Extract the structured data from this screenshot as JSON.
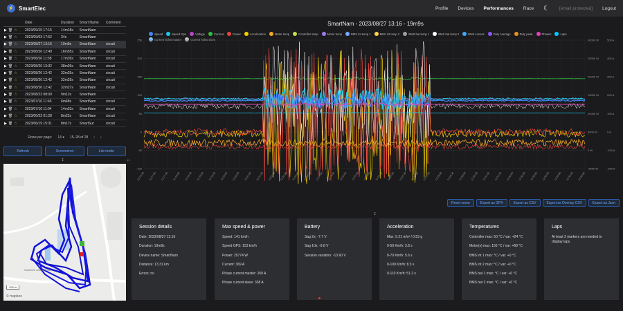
{
  "app": {
    "name": "SmartElec"
  },
  "nav": {
    "profile": "Profile",
    "devices": "Devices",
    "performances": "Performances",
    "race": "Race",
    "email": "[email protected]",
    "logout": "Logout"
  },
  "table": {
    "headers": {
      "date": "Date",
      "duration": "Duration",
      "name": "Smart Name",
      "comment": "Comment"
    },
    "rows": [
      {
        "date": "2023/09/15 17:15",
        "duration": "14m18s",
        "name": "SmartNam",
        "comment": ""
      },
      {
        "date": "2023/09/03 17:52",
        "duration": "34s",
        "name": "SmartNam",
        "comment": ""
      },
      {
        "date": "2023/08/27 13:16",
        "duration": "19m9s",
        "name": "SmartNam",
        "comment": "circuit"
      },
      {
        "date": "2023/08/26 12:49",
        "duration": "16m55s",
        "name": "SmartNam",
        "comment": "circuit"
      },
      {
        "date": "2023/08/26 11:58",
        "duration": "17m39s",
        "name": "SmartNam",
        "comment": "circuit"
      },
      {
        "date": "2023/08/26 13:32",
        "duration": "38m39s",
        "name": "SmartNam",
        "comment": "circuit"
      },
      {
        "date": "2023/08/26 12:42",
        "duration": "32m25s",
        "name": "SmartNam",
        "comment": "circuit"
      },
      {
        "date": "2023/08/26 12:42",
        "duration": "32m29s",
        "name": "SmartNam",
        "comment": "circuit"
      },
      {
        "date": "2023/08/26 12:42",
        "duration": "32m27s",
        "name": "SmartNam",
        "comment": "circuit"
      },
      {
        "date": "2023/08/23 08:09",
        "duration": "9m12s",
        "name": "SmartNam",
        "comment": ""
      },
      {
        "date": "2023/07/16 11:45",
        "duration": "6m48s",
        "name": "SmartNam",
        "comment": "circuit"
      },
      {
        "date": "2023/07/16 11:04",
        "duration": "14m33s",
        "name": "SmartNam",
        "comment": "circuit"
      },
      {
        "date": "2023/06/22 01:28",
        "duration": "8m22s",
        "name": "SmartNam",
        "comment": "circuit"
      },
      {
        "date": "2023/06/19 15:31",
        "duration": "8m17s",
        "name": "SmartSur",
        "comment": "circuit"
      }
    ],
    "pagination": {
      "rows_label": "Rows per page:",
      "rows_value": "14",
      "range": "15–28 of 28"
    }
  },
  "buttons": {
    "refresh": "Refresh",
    "screenshot": "Screenshot",
    "lite": "Lite mode"
  },
  "map": {
    "attribution": "© mapbox",
    "scale": "100 m",
    "road": "Southern Arena Circuit"
  },
  "chart_data": {
    "type": "line",
    "title": "SmartNam - 2023/08/27 13:16 - 19m9s",
    "legend": [
      "Speed",
      "Speed Gps",
      "Voltage",
      "Current",
      "Power",
      "Acceleration",
      "Motor temp",
      "Controller temp",
      "Motor temp",
      "BMS int temp 1",
      "BMS int temp 2",
      "BMS bat temp 1",
      "BMS bat temp 2",
      "BMS current",
      "Duty Average",
      "Duty peak",
      "Phases",
      "Laps",
      "Current hides master",
      "Current hides slave"
    ],
    "colors": [
      "#4285f4",
      "#1ec7e8",
      "#bb44cc",
      "#2fbf40",
      "#e8453c",
      "#f5d000",
      "#f5a623",
      "#c0e040",
      "#9e7cf0",
      "#7aa8ff",
      "#ffd24a",
      "#9e9e9e",
      "#ffffff",
      "#3fa8ff",
      "#8855ff",
      "#e89020",
      "#dd44bb",
      "#00ccff",
      "#88ccff",
      "#cccccc"
    ],
    "y_left": {
      "min": -100,
      "max": 250
    },
    "x_labels": [
      "13:16:30",
      "13:17:00",
      "13:17:30",
      "13:18:00",
      "13:18:30",
      "13:19:00",
      "13:19:30",
      "13:20:00",
      "13:20:30",
      "13:21:00",
      "13:21:30",
      "13:22:00",
      "13:22:30",
      "13:23:00",
      "13:23:30",
      "13:24:00",
      "13:24:30",
      "13:25:00",
      "13:25:30",
      "13:26:00",
      "13:26:30",
      "13:27:00",
      "13:27:30",
      "13:28:00",
      "13:28:30",
      "13:29:00",
      "13:29:30",
      "13:30:00",
      "13:30:30",
      "13:31:00",
      "13:31:30",
      "13:32:00",
      "13:32:30",
      "13:33:00",
      "13:33:30",
      "13:34:00",
      "13:34:30",
      "13:35:00"
    ],
    "y_left_ticks": [
      "250",
      "200",
      "150",
      "100",
      "50",
      "0",
      "-50",
      "-100"
    ],
    "y_right_ticks": [
      "30000 W",
      "25000 W",
      "20000 W",
      "15000 W",
      "10000 W",
      "5000 W",
      "0 W",
      "-5000 W"
    ],
    "y_right2_ticks": [
      "500 A",
      "400 A",
      "300 A",
      "200 A",
      "100 A",
      "0 A",
      "-100 A",
      "-200 A"
    ]
  },
  "actions": {
    "reset": "Reset zoom",
    "gpx": "Export as GPX",
    "csv": "Export as CSV",
    "overlay": "Export as Overlay CSV",
    "json": "Export as Json"
  },
  "cards": {
    "session": {
      "title": "Session details",
      "lines": [
        "Date: 2023/08/27 13:16",
        "Duration: 19m9s",
        "Device name: SmartNam",
        "Distance: 13.31 km",
        "Errors: no"
      ]
    },
    "speed": {
      "title": "Max speed & power",
      "lines": [
        "Speed: 141 km/h",
        "Speed GPS: 153 km/h",
        "Power: 25774 W",
        "Current: 369 A",
        "Phase current master: 260 A",
        "Phase current slave: 338 A"
      ]
    },
    "battery": {
      "title": "Battery",
      "lines": [
        "Sag 2s: -7.7 V",
        "Sag 10s: -9.8 V",
        "Session variation: -13.60 V"
      ]
    },
    "accel": {
      "title": "Acceleration",
      "lines": [
        "Max: 5.21 m/s² / 0.53 g",
        "0-50 Km/h: 3.8 s",
        "0-70 Km/h: 5.6 s",
        "0-100 Km/h: 8.3 s",
        "0-110 Km/h: 51.2 s"
      ]
    },
    "temps": {
      "title": "Temperatures",
      "lines": [
        "Controller max: 50 °C / var: +24 °C",
        "Motor(s) max: 156 °C / var: +68 °C",
        "BMS int 1 max: °C / var: +0 °C",
        "BMS int 2 max: °C / var: +0 °C",
        "BMS bat 1 max: °C / var: +0 °C",
        "BMS bat 2 max: °C / var: +0 °C"
      ]
    },
    "laps": {
      "title": "Laps",
      "lines": [
        "At least 2 markers are needed to display laps"
      ]
    }
  }
}
